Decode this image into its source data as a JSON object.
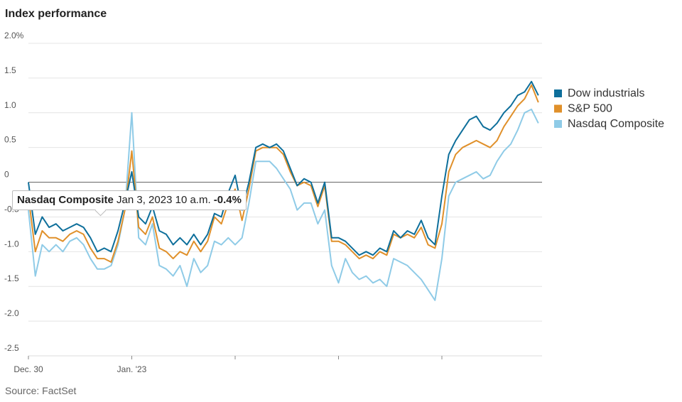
{
  "chart_data": {
    "type": "line",
    "title": "Index performance",
    "source": "Source: FactSet",
    "categories": [
      "Dec. 30",
      null,
      null,
      null,
      null,
      null,
      null,
      null,
      null,
      null,
      null,
      null,
      null,
      null,
      null,
      "Jan. '23",
      null,
      null,
      null,
      null,
      null,
      null,
      null,
      null,
      null,
      null,
      null,
      null,
      null,
      null,
      null,
      null,
      null,
      null,
      null,
      null,
      null,
      null,
      null,
      null,
      null,
      null,
      null,
      null,
      null,
      null,
      null,
      null,
      null,
      null,
      null,
      null,
      null,
      null,
      null,
      null,
      null,
      null,
      null,
      null,
      null,
      null,
      null,
      null,
      null,
      null,
      null,
      null,
      null,
      null,
      null,
      null,
      null,
      null,
      null
    ],
    "ylim": [
      -2.5,
      2.0
    ],
    "yticks": [
      {
        "value": 2.0,
        "label": "2.0%"
      },
      1.5,
      {
        "value": 1.0,
        "label": "1.0"
      },
      0.5,
      0,
      -0.5,
      {
        "value": -1.0,
        "label": "-1.0"
      },
      -1.5,
      {
        "value": -2.0,
        "label": "-2.0"
      },
      -2.5
    ],
    "grid": true,
    "legend": "right",
    "series": [
      {
        "name": "Dow industrials",
        "color": "#0e6f9b",
        "values": [
          0.0,
          -0.75,
          -0.5,
          -0.65,
          -0.6,
          -0.7,
          -0.65,
          -0.6,
          -0.65,
          -0.8,
          -1.0,
          -0.95,
          -1.0,
          -0.7,
          -0.3,
          0.15,
          -0.5,
          -0.6,
          -0.35,
          -0.7,
          -0.75,
          -0.9,
          -0.8,
          -0.9,
          -0.75,
          -0.9,
          -0.75,
          -0.45,
          -0.5,
          -0.15,
          0.1,
          -0.4,
          0.0,
          0.5,
          0.55,
          0.5,
          0.55,
          0.45,
          0.2,
          -0.05,
          0.05,
          0.0,
          -0.3,
          0.0,
          -0.8,
          -0.8,
          -0.85,
          -0.95,
          -1.05,
          -1.0,
          -1.05,
          -0.95,
          -1.0,
          -0.7,
          -0.8,
          -0.7,
          -0.75,
          -0.55,
          -0.8,
          -0.9,
          -0.2,
          0.4,
          0.6,
          0.75,
          0.9,
          0.95,
          0.8,
          0.75,
          0.85,
          1.0,
          1.1,
          1.25,
          1.3,
          1.45,
          1.25
        ]
      },
      {
        "name": "S&P 500",
        "color": "#e0902a",
        "values": [
          -0.2,
          -1.0,
          -0.7,
          -0.8,
          -0.8,
          -0.85,
          -0.75,
          -0.7,
          -0.75,
          -0.95,
          -1.1,
          -1.1,
          -1.15,
          -0.85,
          -0.4,
          0.45,
          -0.65,
          -0.75,
          -0.5,
          -0.95,
          -1.0,
          -1.1,
          -1.0,
          -1.05,
          -0.85,
          -1.0,
          -0.85,
          -0.5,
          -0.6,
          -0.3,
          -0.1,
          -0.55,
          -0.1,
          0.45,
          0.5,
          0.5,
          0.5,
          0.4,
          0.15,
          -0.05,
          0.0,
          -0.05,
          -0.35,
          -0.05,
          -0.85,
          -0.85,
          -0.9,
          -1.0,
          -1.1,
          -1.05,
          -1.1,
          -1.0,
          -1.05,
          -0.75,
          -0.8,
          -0.75,
          -0.8,
          -0.65,
          -0.9,
          -0.95,
          -0.6,
          0.15,
          0.4,
          0.5,
          0.55,
          0.6,
          0.55,
          0.5,
          0.6,
          0.8,
          0.95,
          1.1,
          1.2,
          1.4,
          1.15
        ]
      },
      {
        "name": "Nasdaq Composite",
        "color": "#8fcbe7",
        "values": [
          -0.4,
          -1.35,
          -0.9,
          -1.0,
          -0.9,
          -1.0,
          -0.85,
          -0.8,
          -0.9,
          -1.1,
          -1.25,
          -1.25,
          -1.2,
          -0.9,
          -0.4,
          1.0,
          -0.8,
          -0.9,
          -0.6,
          -1.2,
          -1.25,
          -1.35,
          -1.2,
          -1.5,
          -1.1,
          -1.3,
          -1.2,
          -0.85,
          -0.9,
          -0.8,
          -0.9,
          -0.8,
          -0.3,
          0.3,
          0.3,
          0.3,
          0.2,
          0.05,
          -0.1,
          -0.4,
          -0.3,
          -0.3,
          -0.6,
          -0.4,
          -1.2,
          -1.45,
          -1.1,
          -1.3,
          -1.4,
          -1.35,
          -1.45,
          -1.4,
          -1.5,
          -1.1,
          -1.15,
          -1.2,
          -1.3,
          -1.4,
          -1.55,
          -1.7,
          -1.1,
          -0.2,
          0.0,
          0.05,
          0.1,
          0.15,
          0.05,
          0.1,
          0.3,
          0.45,
          0.55,
          0.75,
          1.0,
          1.05,
          0.85
        ]
      }
    ],
    "tooltip": {
      "series": "Nasdaq Composite",
      "time": "Jan 3, 2023 10 a.m.",
      "value": "-0.4%"
    }
  }
}
